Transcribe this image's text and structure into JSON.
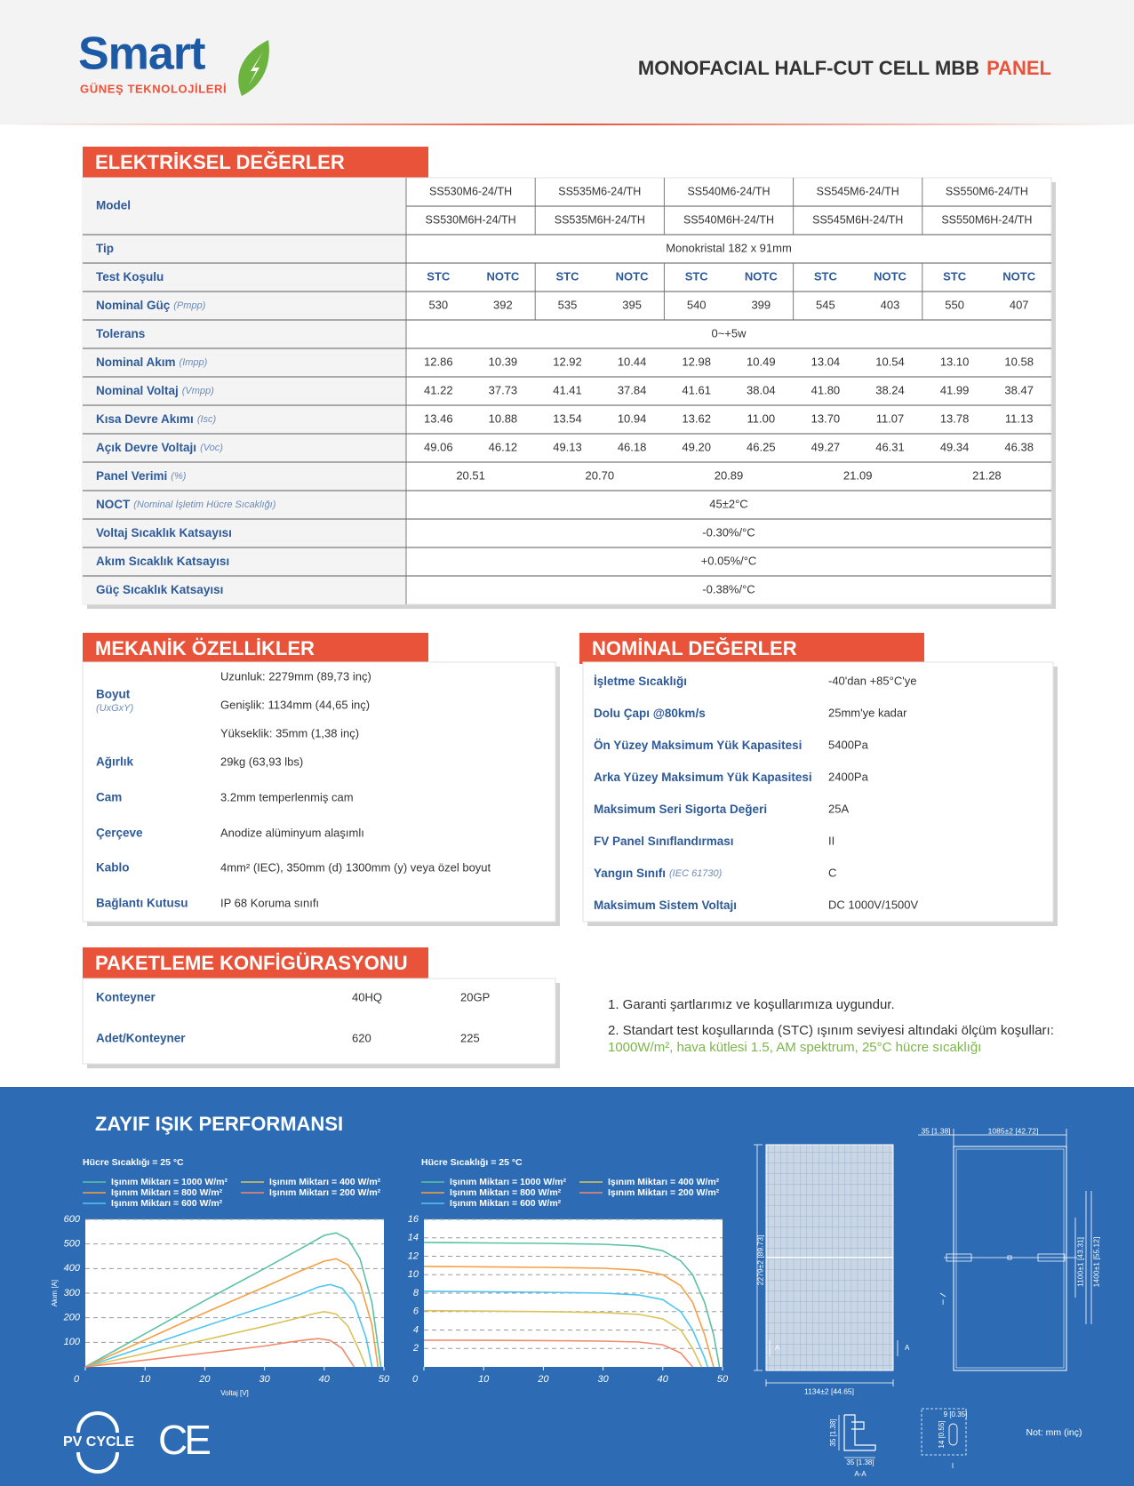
{
  "header": {
    "brand": "Smart",
    "brand_sub": "GÜNEŞ TEKNOLOJİLERİ",
    "title": "MONOFACIAL HALF-CUT CELL MBB",
    "title_accent": "PANEL"
  },
  "electrical": {
    "title": "ELEKTRİKSEL DEĞERLER",
    "model_label": "Model",
    "models": [
      [
        "SS530M6-24/TH",
        "SS530M6H-24/TH"
      ],
      [
        "SS535M6-24/TH",
        "SS535M6H-24/TH"
      ],
      [
        "SS540M6-24/TH",
        "SS540M6H-24/TH"
      ],
      [
        "SS545M6-24/TH",
        "SS545M6H-24/TH"
      ],
      [
        "SS550M6-24/TH",
        "SS550M6H-24/TH"
      ]
    ],
    "rows": [
      {
        "label": "Tip",
        "value": "Monokristal 182 x 91mm"
      },
      {
        "label": "Test Koşulu",
        "values": [
          "STC",
          "NOTC",
          "STC",
          "NOTC",
          "STC",
          "NOTC",
          "STC",
          "NOTC",
          "STC",
          "NOTC"
        ]
      },
      {
        "label": "Nominal Güç",
        "note": "(Pmpp)",
        "values": [
          "530",
          "392",
          "535",
          "395",
          "540",
          "399",
          "545",
          "403",
          "550",
          "407"
        ]
      },
      {
        "label": "Tolerans",
        "value": "0~+5w"
      },
      {
        "label": "Nominal Akım",
        "note": "(Impp)",
        "values": [
          "12.86",
          "10.39",
          "12.92",
          "10.44",
          "12.98",
          "10.49",
          "13.04",
          "10.54",
          "13.10",
          "10.58"
        ]
      },
      {
        "label": "Nominal Voltaj",
        "note": "(Vmpp)",
        "values": [
          "41.22",
          "37.73",
          "41.41",
          "37.84",
          "41.61",
          "38.04",
          "41.80",
          "38.24",
          "41.99",
          "38.47"
        ]
      },
      {
        "label": "Kısa Devre Akımı",
        "note": "(Isc)",
        "values": [
          "13.46",
          "10.88",
          "13.54",
          "10.94",
          "13.62",
          "11.00",
          "13.70",
          "11.07",
          "13.78",
          "11.13"
        ]
      },
      {
        "label": "Açık Devre Voltajı",
        "note": "(Voc)",
        "values": [
          "49.06",
          "46.12",
          "49.13",
          "46.18",
          "49.20",
          "46.25",
          "49.27",
          "46.31",
          "49.34",
          "46.38"
        ]
      },
      {
        "label": "Panel Verimi",
        "note": "(%)",
        "values": [
          "20.51",
          "20.70",
          "20.89",
          "21.09",
          "21.28"
        ]
      },
      {
        "label": "NOCT",
        "note": "(Nominal İşletim Hücre Sıcaklığı)",
        "value": "45±2°C"
      },
      {
        "label": "Voltaj Sıcaklık Katsayısı",
        "value": "-0.30%/°C"
      },
      {
        "label": "Akım Sıcaklık Katsayısı",
        "value": "+0.05%/°C"
      },
      {
        "label": "Güç Sıcaklık Katsayısı",
        "value": "-0.38%/°C"
      }
    ]
  },
  "mechanical": {
    "title": "MEKANİK ÖZELLİKLER",
    "rows": [
      {
        "label": "Boyut",
        "note": "(UxGxY)",
        "values": [
          "Uzunluk: 2279mm (89,73 inç)",
          "Genişlik: 1134mm (44,65 inç)",
          "Yükseklik: 35mm (1,38 inç)"
        ]
      },
      {
        "label": "Ağırlık",
        "value": "29kg (63,93 lbs)"
      },
      {
        "label": "Cam",
        "value": "3.2mm temperlenmiş cam"
      },
      {
        "label": "Çerçeve",
        "value": "Anodize alüminyum alaşımlı"
      },
      {
        "label": "Kablo",
        "value": "4mm² (IEC), 350mm (d) 1300mm (y) veya özel boyut"
      },
      {
        "label": "Bağlantı Kutusu",
        "value": "IP 68 Koruma sınıfı"
      }
    ]
  },
  "nominal": {
    "title": "NOMİNAL DEĞERLER",
    "rows": [
      {
        "label": "İşletme Sıcaklığı",
        "value": "-40'dan +85°C'ye"
      },
      {
        "label": "Dolu Çapı @80km/s",
        "value": "25mm'ye kadar"
      },
      {
        "label": "Ön Yüzey Maksimum Yük Kapasitesi",
        "value": "5400Pa"
      },
      {
        "label": "Arka Yüzey Maksimum Yük Kapasitesi",
        "value": "2400Pa"
      },
      {
        "label": "Maksimum Seri Sigorta Değeri",
        "value": "25A"
      },
      {
        "label": "FV Panel Sınıflandırması",
        "value": "II"
      },
      {
        "label": "Yangın Sınıfı",
        "note": "(IEC 61730)",
        "value": "C"
      },
      {
        "label": "Maksimum Sistem Voltajı",
        "value": "DC 1000V/1500V"
      }
    ]
  },
  "packaging": {
    "title": "PAKETLEME KONFİGÜRASYONU",
    "rows": [
      {
        "label": "Konteyner",
        "values": [
          "40HQ",
          "20GP"
        ]
      },
      {
        "label": "Adet/Konteyner",
        "values": [
          "620",
          "225"
        ]
      }
    ]
  },
  "notes": {
    "note1": "1. Garanti şartlarımız ve koşullarımıza uygundur.",
    "note2": "2. Standart test koşullarında (STC) ışınım seviyesi altındaki ölçüm koşulları:",
    "note2_highlight": "1000W/m², hava kütlesi 1.5, AM spektrum, 25°C hücre sıcaklığı"
  },
  "weak_light": {
    "title": "ZAYIF IŞIK PERFORMANSI"
  },
  "chart_data": [
    {
      "type": "line",
      "subtitle": "Hücre Sıcaklığı = 25 °C",
      "xlabel": "Voltaj [V]",
      "ylabel": "Akım [A]",
      "xlim": [
        0,
        50
      ],
      "ylim": [
        0,
        600
      ],
      "xticks": [
        0,
        10,
        20,
        30,
        40,
        50
      ],
      "yticks": [
        100,
        200,
        300,
        400,
        500,
        600
      ],
      "grid": true,
      "series": [
        {
          "name": "Işınım Miktarı = 1000 W/m²",
          "color": "#5cc1a4",
          "x": [
            0,
            10,
            20,
            30,
            36,
            40,
            42,
            44,
            46,
            48,
            49.5
          ],
          "values": [
            0,
            135,
            270,
            400,
            480,
            535,
            545,
            520,
            440,
            260,
            0
          ]
        },
        {
          "name": "Işınım Miktarı = 800 W/m²",
          "color": "#f5a043",
          "x": [
            0,
            10,
            20,
            30,
            36,
            40,
            42,
            44,
            46,
            48,
            49
          ],
          "values": [
            0,
            110,
            220,
            325,
            390,
            430,
            440,
            415,
            340,
            170,
            0
          ]
        },
        {
          "name": "Işınım Miktarı = 600 W/m²",
          "color": "#4ec6f0",
          "x": [
            0,
            10,
            20,
            30,
            36,
            39,
            41,
            43,
            45,
            47,
            48
          ],
          "values": [
            0,
            82,
            165,
            245,
            295,
            325,
            335,
            320,
            260,
            120,
            0
          ]
        },
        {
          "name": "Işınım Miktarı = 400 W/m²",
          "color": "#d9c35a",
          "x": [
            0,
            10,
            20,
            30,
            35,
            38,
            40,
            42,
            44,
            46,
            47
          ],
          "values": [
            0,
            55,
            110,
            165,
            195,
            215,
            225,
            215,
            165,
            60,
            0
          ]
        },
        {
          "name": "Işınım Miktarı = 200 W/m²",
          "color": "#f08a6b",
          "x": [
            0,
            10,
            20,
            30,
            34,
            37,
            39,
            41,
            43,
            45
          ],
          "values": [
            0,
            28,
            56,
            85,
            100,
            110,
            115,
            108,
            75,
            0
          ]
        }
      ]
    },
    {
      "type": "line",
      "subtitle": "Hücre Sıcaklığı = 25 °C",
      "xlim": [
        0,
        50
      ],
      "ylim": [
        0,
        16
      ],
      "xticks": [
        0,
        10,
        20,
        30,
        40,
        50
      ],
      "yticks": [
        2,
        4,
        6,
        8,
        10,
        12,
        14,
        16
      ],
      "grid": true,
      "series": [
        {
          "name": "Işınım Miktarı = 1000 W/m²",
          "color": "#5cc1a4",
          "x": [
            0,
            10,
            20,
            30,
            36,
            40,
            43,
            45,
            47,
            48.5,
            49.5
          ],
          "values": [
            13.5,
            13.45,
            13.4,
            13.3,
            13.1,
            12.6,
            11.5,
            10,
            7,
            3.5,
            0
          ]
        },
        {
          "name": "Işınım Miktarı = 800 W/m²",
          "color": "#f5a043",
          "x": [
            0,
            10,
            20,
            30,
            36,
            40,
            43,
            45,
            47,
            48.5
          ],
          "values": [
            10.9,
            10.85,
            10.8,
            10.7,
            10.5,
            10,
            8.8,
            7,
            3.5,
            0
          ]
        },
        {
          "name": "Işınım Miktarı = 600 W/m²",
          "color": "#4ec6f0",
          "x": [
            0,
            10,
            20,
            30,
            36,
            40,
            43,
            45,
            47,
            47.5
          ],
          "values": [
            8.2,
            8.15,
            8.1,
            8,
            7.8,
            7.3,
            6,
            4,
            1,
            0
          ]
        },
        {
          "name": "Işınım Miktarı = 400 W/m²",
          "color": "#d9c35a",
          "x": [
            0,
            10,
            20,
            30,
            36,
            40,
            43,
            45,
            46.5
          ],
          "values": [
            6.1,
            6.05,
            6,
            5.9,
            5.7,
            5.2,
            4,
            2,
            0
          ]
        },
        {
          "name": "Işınım Miktarı = 200 W/m²",
          "color": "#f08a6b",
          "x": [
            0,
            10,
            20,
            30,
            36,
            40,
            43,
            45
          ],
          "values": [
            2.9,
            2.88,
            2.85,
            2.8,
            2.7,
            2.4,
            1.5,
            0
          ]
        }
      ]
    }
  ],
  "drawing": {
    "frame_width": "35 [1.38]",
    "back_width": "1085±2 [42.72]",
    "length": "2279±2 [89.73]",
    "mount_inner": "1100±1 [43.31]",
    "mount_outer": "1400±1 [55.12]",
    "width": "1134±2 [44.65]",
    "section_mark_left": "A",
    "section_mark_right": "A",
    "detail_mark": "I",
    "profile_height": "35 [1.38]",
    "profile_width": "35 [1.38]",
    "section_label": "A-A",
    "hole_width": "9 [0.35]",
    "hole_height": "14 [0.55]",
    "detail_label": "I",
    "unit_note": "Not: mm (inç)"
  },
  "footer": {
    "recycle": "PV CYCLE",
    "ce": "CE"
  }
}
